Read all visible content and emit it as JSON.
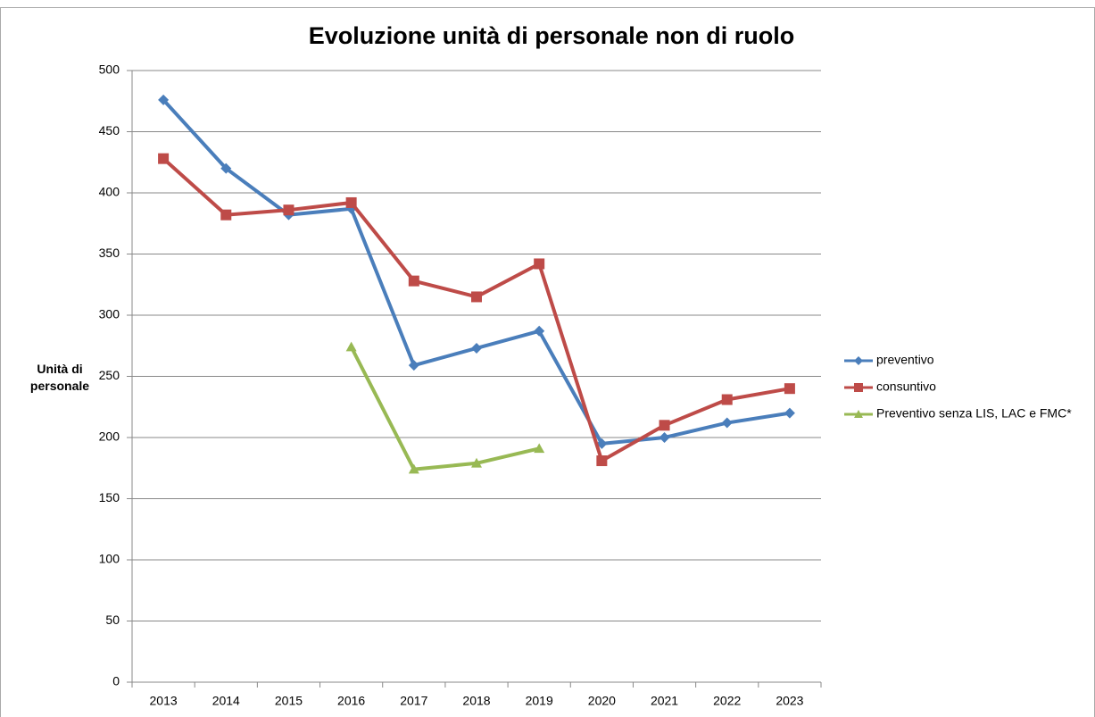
{
  "chart_data": {
    "type": "line",
    "title": "Evoluzione unità di personale non di ruolo",
    "y_label": "Unità di personale",
    "categories": [
      "2013",
      "2014",
      "2015",
      "2016",
      "2017",
      "2018",
      "2019",
      "2020",
      "2021",
      "2022",
      "2023"
    ],
    "series": [
      {
        "name": "preventivo",
        "color": "#4a7ebb",
        "marker": "diamond",
        "values": [
          476,
          420,
          382,
          387,
          259,
          273,
          287,
          195,
          200,
          212,
          220
        ]
      },
      {
        "name": "consuntivo",
        "color": "#be4b48",
        "marker": "square",
        "values": [
          428,
          382,
          386,
          392,
          328,
          315,
          342,
          181,
          210,
          231,
          240
        ]
      },
      {
        "name": "Preventivo senza  LIS, LAC e FMC*",
        "color": "#98b954",
        "marker": "triangle",
        "values": [
          null,
          null,
          null,
          274,
          174,
          179,
          191,
          null,
          null,
          null,
          null
        ]
      }
    ],
    "ylim": [
      0,
      500
    ],
    "yticks": [
      0,
      50,
      100,
      150,
      200,
      250,
      300,
      350,
      400,
      450,
      500
    ],
    "grid": true,
    "legend": "right"
  }
}
